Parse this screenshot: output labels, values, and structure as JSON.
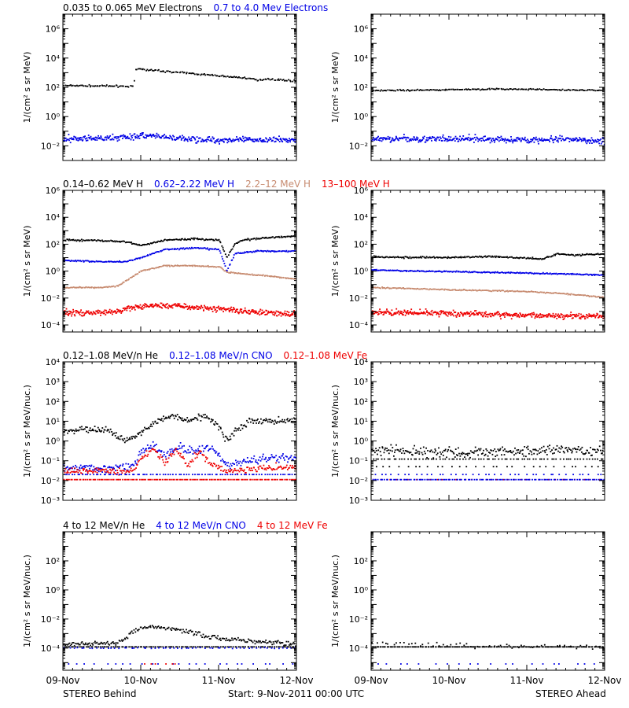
{
  "colors": {
    "black": "#000000",
    "blue": "#0000e6",
    "tan": "#c78b70",
    "red": "#ee0000",
    "axis": "#000000"
  },
  "footer": {
    "left": "STEREO Behind",
    "center": "Start:  9-Nov-2011 00:00 UTC",
    "right": "STEREO Ahead"
  },
  "x_ticks": [
    "09-Nov",
    "10-Nov",
    "11-Nov",
    "12-Nov"
  ],
  "chart_data": [
    {
      "id": "electrons-behind",
      "type": "scatter",
      "scale": "log",
      "ylim": [
        0.001,
        10000000
      ],
      "ylabel": "1/(cm² s sr MeV)",
      "tick_exps": [
        -2,
        0,
        2,
        4,
        6
      ],
      "legend": [
        {
          "text": "0.035 to 0.065 MeV Electrons",
          "color": "black"
        },
        {
          "text": "0.7 to 4.0 Mev Electrons",
          "color": "blue"
        }
      ],
      "series": [
        {
          "color": "black",
          "x": [
            0,
            0.3,
            0.6,
            0.9,
            0.93,
            0.95,
            1.0,
            1.5,
            2.0,
            2.4,
            2.5,
            2.6,
            3.0
          ],
          "y": [
            130,
            125,
            120,
            115,
            1500,
            1800,
            1700,
            1000,
            600,
            400,
            280,
            380,
            260
          ],
          "noise": 0.05,
          "n": 180
        },
        {
          "color": "blue",
          "x": [
            0,
            0.5,
            1.0,
            1.5,
            2.0,
            2.5,
            3.0
          ],
          "y": [
            0.03,
            0.03,
            0.05,
            0.03,
            0.025,
            0.025,
            0.025
          ],
          "noise": 0.2,
          "n": 380
        }
      ]
    },
    {
      "id": "electrons-ahead",
      "type": "scatter",
      "scale": "log",
      "ylim": [
        0.001,
        10000000
      ],
      "ylabel": "1/(cm² s sr MeV)",
      "tick_exps": [
        -2,
        0,
        2,
        4,
        6
      ],
      "legend": [],
      "series": [
        {
          "color": "black",
          "x": [
            0,
            0.5,
            1.0,
            1.5,
            2.0,
            2.5,
            3.0
          ],
          "y": [
            60,
            62,
            68,
            75,
            72,
            65,
            62
          ],
          "noise": 0.04,
          "n": 180
        },
        {
          "color": "blue",
          "x": [
            0,
            0.5,
            1.0,
            1.5,
            2.0,
            2.5,
            3.0
          ],
          "y": [
            0.03,
            0.03,
            0.028,
            0.028,
            0.025,
            0.025,
            0.022
          ],
          "noise": 0.2,
          "n": 380
        }
      ]
    },
    {
      "id": "protons-behind",
      "type": "scatter",
      "scale": "log",
      "ylim": [
        3e-05,
        1000000
      ],
      "ylabel": "1/(cm² s sr MeV)",
      "tick_exps": [
        -4,
        -2,
        0,
        2,
        4,
        6
      ],
      "legend": [
        {
          "text": "0.14–0.62 MeV H",
          "color": "black"
        },
        {
          "text": "0.62–2.22 MeV H",
          "color": "blue"
        },
        {
          "text": "2.2–12 MeV H",
          "color": "tan"
        },
        {
          "text": "13–100 MeV H",
          "color": "red"
        }
      ],
      "series": [
        {
          "color": "black",
          "x": [
            0,
            0.5,
            0.8,
            1.0,
            1.3,
            1.7,
            2.0,
            2.1,
            2.2,
            2.3,
            2.6,
            3.0
          ],
          "y": [
            200,
            180,
            150,
            80,
            200,
            250,
            200,
            10,
            100,
            200,
            300,
            400
          ],
          "noise": 0.06,
          "n": 240
        },
        {
          "color": "blue",
          "x": [
            0,
            0.5,
            0.8,
            1.0,
            1.3,
            1.7,
            2.0,
            2.1,
            2.2,
            2.5,
            3.0
          ],
          "y": [
            6,
            5,
            5,
            10,
            40,
            50,
            40,
            1,
            20,
            30,
            30
          ],
          "noise": 0.05,
          "n": 240
        },
        {
          "color": "tan",
          "x": [
            0,
            0.5,
            0.7,
            1.0,
            1.3,
            1.6,
            2.0,
            2.1,
            2.5,
            3.0
          ],
          "y": [
            0.06,
            0.06,
            0.08,
            1.0,
            2.5,
            2.5,
            2.0,
            0.8,
            0.5,
            0.25
          ],
          "noise": 0.04,
          "n": 240
        },
        {
          "color": "red",
          "x": [
            0,
            0.5,
            0.7,
            0.9,
            1.2,
            1.6,
            2.0,
            2.4,
            3.0
          ],
          "y": [
            0.0008,
            0.0008,
            0.001,
            0.002,
            0.003,
            0.0022,
            0.0015,
            0.001,
            0.0006
          ],
          "noise": 0.2,
          "n": 420
        }
      ]
    },
    {
      "id": "protons-ahead",
      "type": "scatter",
      "scale": "log",
      "ylim": [
        3e-05,
        1000000
      ],
      "ylabel": "1/(cm² s sr MeV)",
      "tick_exps": [
        -4,
        -2,
        0,
        2,
        4,
        6
      ],
      "legend": [],
      "series": [
        {
          "color": "black",
          "x": [
            0,
            0.5,
            1.0,
            1.5,
            2.0,
            2.2,
            2.4,
            2.6,
            3.0
          ],
          "y": [
            12,
            10,
            10,
            12,
            9,
            8,
            20,
            15,
            20
          ],
          "noise": 0.06,
          "n": 240
        },
        {
          "color": "blue",
          "x": [
            0,
            0.5,
            1.0,
            1.5,
            2.0,
            2.5,
            3.0
          ],
          "y": [
            1.2,
            1.0,
            0.9,
            0.8,
            0.7,
            0.6,
            0.5
          ],
          "noise": 0.04,
          "n": 240
        },
        {
          "color": "tan",
          "x": [
            0,
            0.5,
            1.0,
            1.5,
            2.0,
            2.5,
            3.0
          ],
          "y": [
            0.06,
            0.05,
            0.04,
            0.035,
            0.03,
            0.02,
            0.011
          ],
          "noise": 0.04,
          "n": 240
        },
        {
          "color": "red",
          "x": [
            0,
            0.5,
            1.0,
            1.5,
            2.0,
            2.5,
            3.0
          ],
          "y": [
            0.0008,
            0.0008,
            0.0007,
            0.0006,
            0.0005,
            0.0005,
            0.0004
          ],
          "noise": 0.2,
          "n": 420
        }
      ]
    },
    {
      "id": "ions-behind",
      "type": "scatter",
      "scale": "log",
      "ylim": [
        0.001,
        10000
      ],
      "ylabel": "1/(cm² s sr MeV/nuc.)",
      "tick_exps": [
        -3,
        -2,
        -1,
        0,
        1,
        2,
        3,
        4
      ],
      "legend": [
        {
          "text": "0.12–1.08 MeV/n He",
          "color": "black"
        },
        {
          "text": "0.12–1.08 MeV/n CNO",
          "color": "blue"
        },
        {
          "text": "0.12–1.08 MeV Fe",
          "color": "red"
        }
      ],
      "series": [
        {
          "color": "black",
          "x": [
            0,
            0.3,
            0.6,
            0.8,
            1.0,
            1.2,
            1.4,
            1.6,
            1.8,
            2.0,
            2.1,
            2.2,
            2.4,
            2.7,
            3.0
          ],
          "y": [
            3,
            4,
            3,
            1,
            3,
            10,
            20,
            10,
            20,
            5,
            1,
            3,
            10,
            10,
            12
          ],
          "noise": 0.15,
          "n": 260
        },
        {
          "color": "blue",
          "x": [
            0,
            0.5,
            0.9,
            1.0,
            1.15,
            1.3,
            1.5,
            1.7,
            1.9,
            2.1,
            2.5,
            3.0
          ],
          "y": [
            0.04,
            0.04,
            0.05,
            0.3,
            0.6,
            0.2,
            0.5,
            0.25,
            0.5,
            0.06,
            0.12,
            0.15
          ],
          "noise": 0.2,
          "n": 260
        },
        {
          "color": "red",
          "x": [
            0,
            0.9,
            1.0,
            1.15,
            1.3,
            1.45,
            1.6,
            1.75,
            1.9,
            2.1,
            2.5,
            3.0
          ],
          "y": [
            0.03,
            0.03,
            0.15,
            0.4,
            0.08,
            0.4,
            0.06,
            0.3,
            0.06,
            0.03,
            0.04,
            0.05
          ],
          "noise": 0.15,
          "n": 260
        },
        {
          "color": "blue",
          "x": [
            0,
            3.0
          ],
          "y": [
            0.02,
            0.02
          ],
          "noise": 0,
          "n": 90
        },
        {
          "color": "red",
          "x": [
            0,
            3.0
          ],
          "y": [
            0.011,
            0.011
          ],
          "noise": 0,
          "n": 140
        }
      ]
    },
    {
      "id": "ions-ahead",
      "type": "scatter",
      "scale": "log",
      "ylim": [
        0.001,
        10000
      ],
      "ylabel": "1/(cm² s sr MeV/nuc.)",
      "tick_exps": [
        -3,
        -2,
        -1,
        0,
        1,
        2,
        3,
        4
      ],
      "legend": [],
      "series": [
        {
          "color": "black",
          "x": [
            0,
            0.5,
            1.0,
            1.5,
            2.0,
            2.5,
            3.0
          ],
          "y": [
            0.3,
            0.3,
            0.25,
            0.3,
            0.3,
            0.35,
            0.3
          ],
          "noise": 0.25,
          "n": 260
        },
        {
          "color": "black",
          "x": [
            0,
            3.0
          ],
          "y": [
            0.12,
            0.12
          ],
          "noise": 0,
          "n": 80
        },
        {
          "color": "black",
          "x": [
            0,
            3.0
          ],
          "y": [
            0.05,
            0.05
          ],
          "noise": 0,
          "n": 30
        },
        {
          "color": "blue",
          "x": [
            0,
            3.0
          ],
          "y": [
            0.02,
            0.02
          ],
          "noise": 0,
          "n": 40
        },
        {
          "color": "red",
          "x": [
            0,
            3.0
          ],
          "y": [
            0.011,
            0.011
          ],
          "noise": 0,
          "n": 40
        },
        {
          "color": "blue",
          "x": [
            0,
            3.0
          ],
          "y": [
            0.011,
            0.011
          ],
          "noise": 0,
          "n": 120
        }
      ]
    },
    {
      "id": "highions-behind",
      "type": "scatter",
      "scale": "log",
      "ylim": [
        3e-06,
        10000
      ],
      "ylabel": "1/(cm² s sr MeV/nuc.)",
      "tick_exps": [
        -4,
        -2,
        0,
        2
      ],
      "legend": [
        {
          "text": "4 to 12 MeV/n He",
          "color": "black"
        },
        {
          "text": "4 to 12 MeV/n CNO",
          "color": "blue"
        },
        {
          "text": "4 to 12 MeV Fe",
          "color": "red"
        }
      ],
      "series": [
        {
          "color": "black",
          "x": [
            0,
            0.6,
            0.75,
            0.9,
            1.1,
            1.4,
            1.7,
            2.0,
            2.4,
            3.0
          ],
          "y": [
            0.0002,
            0.0002,
            0.0003,
            0.0015,
            0.003,
            0.002,
            0.001,
            0.0005,
            0.0003,
            0.0002
          ],
          "noise": 0.15,
          "n": 220
        },
        {
          "color": "black",
          "x": [
            0,
            3.0
          ],
          "y": [
            0.00012,
            0.00012
          ],
          "noise": 0,
          "n": 130
        },
        {
          "color": "blue",
          "x": [
            0.0,
            3.0
          ],
          "y": [
            0.0001,
            0.0001
          ],
          "noise": 0.03,
          "n": 60
        },
        {
          "color": "blue",
          "x": [
            0.0,
            3.0
          ],
          "y": [
            8e-06,
            8e-06
          ],
          "noise": 0,
          "n": 25
        },
        {
          "color": "red",
          "x": [
            1.0,
            1.5
          ],
          "y": [
            8e-06,
            8e-06
          ],
          "noise": 0,
          "n": 6
        }
      ]
    },
    {
      "id": "highions-ahead",
      "type": "scatter",
      "scale": "log",
      "ylim": [
        3e-06,
        10000
      ],
      "ylabel": "1/(cm² s sr MeV/nuc.)",
      "tick_exps": [
        -4,
        -2,
        0,
        2
      ],
      "legend": [],
      "series": [
        {
          "color": "black",
          "x": [
            0,
            0.5,
            1.0,
            1.5,
            2.0,
            3.0
          ],
          "y": [
            0.00025,
            0.0002,
            0.00015,
            0.00014,
            0.00013,
            0.00012
          ],
          "noise": 0.15,
          "n": 60
        },
        {
          "color": "black",
          "x": [
            0,
            3.0
          ],
          "y": [
            0.00012,
            0.00012
          ],
          "noise": 0,
          "n": 160
        },
        {
          "color": "blue",
          "x": [
            0.0,
            3.0
          ],
          "y": [
            8e-06,
            8e-06
          ],
          "noise": 0,
          "n": 20
        }
      ]
    }
  ]
}
